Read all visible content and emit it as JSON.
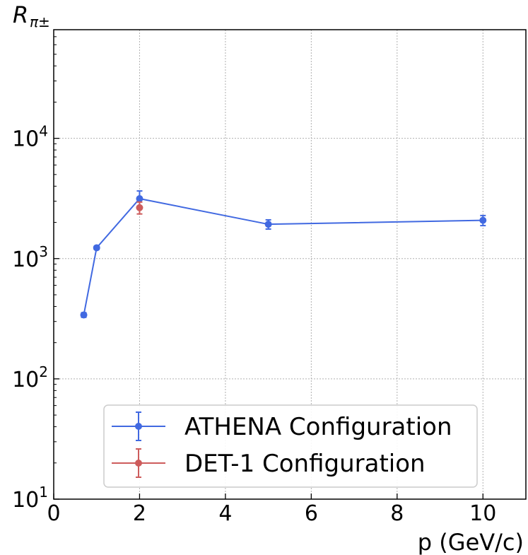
{
  "chart_data": {
    "type": "line",
    "xlabel": "p (GeV/c)",
    "ylabel": "R",
    "ylabel_subscript": "π±",
    "xlim": [
      0,
      11
    ],
    "ylim": [
      10,
      80000
    ],
    "yscale": "log",
    "grid": true,
    "legend_position": "lower-right",
    "x_ticks": [
      0,
      2,
      4,
      6,
      8,
      10
    ],
    "x_tick_labels": [
      "0",
      "2",
      "4",
      "6",
      "8",
      "10"
    ],
    "y_ticks": [
      10,
      100,
      1000,
      10000
    ],
    "y_tick_labels": [
      {
        "base": "10",
        "exp": "1"
      },
      {
        "base": "10",
        "exp": "2"
      },
      {
        "base": "10",
        "exp": "3"
      },
      {
        "base": "10",
        "exp": "4"
      }
    ],
    "series": [
      {
        "name": "ATHENA Configuration",
        "color": "#4169e1",
        "connected": true,
        "x": [
          0.7,
          1.0,
          2.0,
          5.0,
          10.0
        ],
        "y": [
          340,
          1230,
          3150,
          1930,
          2080
        ],
        "err_low": [
          15,
          40,
          500,
          170,
          200
        ],
        "err_high": [
          15,
          40,
          500,
          170,
          200
        ]
      },
      {
        "name": "DET-1 Configuration",
        "color": "#cd5c5c",
        "connected": false,
        "x": [
          2.0
        ],
        "y": [
          2650
        ],
        "err_low": [
          300
        ],
        "err_high": [
          300
        ]
      }
    ]
  }
}
